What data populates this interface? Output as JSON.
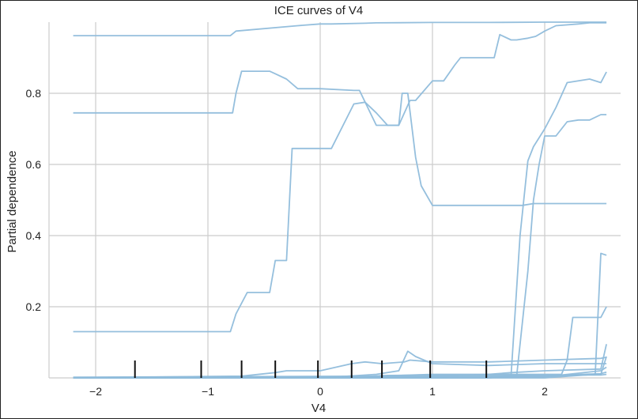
{
  "chart_data": {
    "type": "line",
    "title": "ICE curves of V4",
    "xlabel": "V4",
    "ylabel": "Partial dependence",
    "xlim": [
      -2.25,
      2.6
    ],
    "ylim": [
      0,
      1.0
    ],
    "xticks": [
      -2,
      -1,
      0,
      1,
      2
    ],
    "yticks": [
      0.2,
      0.4,
      0.6,
      0.8
    ],
    "xtick_labels": [
      "−2",
      "−1",
      "0",
      "1",
      "2"
    ],
    "ytick_labels": [
      "0.2",
      "0.4",
      "0.6",
      "0.8"
    ],
    "grid": true,
    "line_color": "#8fbcdb",
    "rug_color": "#111111",
    "rug_x": [
      -1.65,
      -1.06,
      -0.7,
      -0.4,
      -0.02,
      0.28,
      0.55,
      0.98,
      1.48
    ],
    "series": [
      {
        "x": [
          -2.2,
          -0.8,
          -0.75,
          -0.2,
          0.0,
          0.1,
          0.4,
          0.5,
          1.0,
          1.5,
          2.0,
          2.55
        ],
        "y": [
          0.962,
          0.962,
          0.975,
          0.99,
          0.995,
          0.995,
          0.997,
          0.998,
          0.999,
          0.999,
          1.0,
          1.0
        ]
      },
      {
        "x": [
          -2.2,
          -0.78,
          -0.75,
          -0.7,
          -0.45,
          -0.4,
          -0.3,
          -0.2,
          0.0,
          0.3,
          0.35,
          0.5,
          0.7,
          0.73,
          0.78,
          0.85,
          0.9,
          1.0,
          1.1,
          1.2,
          1.8,
          1.9,
          2.0,
          2.55
        ],
        "y": [
          0.745,
          0.745,
          0.8,
          0.862,
          0.862,
          0.855,
          0.84,
          0.813,
          0.813,
          0.808,
          0.808,
          0.71,
          0.71,
          0.8,
          0.8,
          0.62,
          0.54,
          0.485,
          0.485,
          0.485,
          0.485,
          0.49,
          0.49,
          0.49
        ]
      },
      {
        "x": [
          -2.2,
          -0.8,
          -0.75,
          -0.65,
          -0.45,
          -0.4,
          -0.3,
          -0.25,
          0.0,
          0.1,
          0.3,
          0.4,
          0.5,
          0.6,
          0.7,
          0.8,
          0.85,
          1.0,
          1.1,
          1.2,
          1.25,
          1.3,
          1.55,
          1.6,
          1.7,
          1.75,
          1.85,
          1.92,
          2.0,
          2.1,
          2.3,
          2.4,
          2.55
        ],
        "y": [
          0.13,
          0.13,
          0.18,
          0.24,
          0.24,
          0.33,
          0.33,
          0.645,
          0.645,
          0.645,
          0.77,
          0.775,
          0.745,
          0.71,
          0.71,
          0.78,
          0.78,
          0.835,
          0.835,
          0.88,
          0.9,
          0.9,
          0.9,
          0.965,
          0.95,
          0.95,
          0.955,
          0.96,
          0.975,
          0.99,
          0.995,
          0.998,
          0.998
        ]
      },
      {
        "x": [
          -2.2,
          0.0,
          0.3,
          0.5,
          0.7,
          1.0,
          1.5,
          1.7,
          1.78,
          1.85,
          1.9,
          2.0,
          2.1,
          2.2,
          2.4,
          2.5,
          2.55
        ],
        "y": [
          0.0,
          0.0,
          0.0,
          0.0,
          0.0,
          0.0,
          0.0,
          0.005,
          0.4,
          0.61,
          0.65,
          0.7,
          0.76,
          0.83,
          0.84,
          0.83,
          0.86
        ]
      },
      {
        "x": [
          -2.2,
          0.0,
          0.5,
          1.0,
          1.5,
          1.75,
          1.85,
          1.9,
          1.95,
          2.0,
          2.1,
          2.2,
          2.3,
          2.4,
          2.5,
          2.55
        ],
        "y": [
          0.0,
          0.0,
          0.0,
          0.0,
          0.0,
          0.005,
          0.3,
          0.5,
          0.6,
          0.68,
          0.68,
          0.72,
          0.725,
          0.725,
          0.74,
          0.74
        ]
      },
      {
        "x": [
          -2.2,
          -0.7,
          -0.4,
          -0.3,
          0.0,
          0.28,
          0.4,
          0.55,
          0.75,
          0.8,
          1.0,
          1.5,
          2.0,
          2.5,
          2.55
        ],
        "y": [
          0.0,
          0.005,
          0.015,
          0.02,
          0.02,
          0.04,
          0.045,
          0.04,
          0.045,
          0.05,
          0.045,
          0.045,
          0.05,
          0.055,
          0.058
        ]
      },
      {
        "x": [
          -2.2,
          0.0,
          0.5,
          0.7,
          0.78,
          0.85,
          1.0,
          1.5,
          2.0,
          2.5,
          2.55
        ],
        "y": [
          0.0,
          0.0,
          0.01,
          0.02,
          0.075,
          0.06,
          0.04,
          0.035,
          0.04,
          0.04,
          0.04
        ]
      },
      {
        "x": [
          -2.2,
          0.0,
          1.0,
          1.5,
          2.0,
          2.15,
          2.2,
          2.25,
          2.5,
          2.55
        ],
        "y": [
          0.0,
          0.0,
          0.005,
          0.01,
          0.01,
          0.01,
          0.05,
          0.17,
          0.17,
          0.2
        ]
      },
      {
        "x": [
          -2.2,
          0.0,
          1.0,
          2.0,
          2.45,
          2.5,
          2.55
        ],
        "y": [
          0.0,
          0.0,
          0.0,
          0.0,
          0.01,
          0.35,
          0.345
        ]
      },
      {
        "x": [
          -2.2,
          0.5,
          1.0,
          1.5,
          1.7,
          2.0,
          2.5,
          2.55
        ],
        "y": [
          0.002,
          0.005,
          0.01,
          0.01,
          0.015,
          0.02,
          0.025,
          0.095
        ]
      },
      {
        "x": [
          -2.2,
          1.0,
          2.0,
          2.5,
          2.55
        ],
        "y": [
          0.0,
          0.002,
          0.004,
          0.01,
          0.06
        ]
      },
      {
        "x": [
          -2.2,
          1.0,
          2.0,
          2.5,
          2.55
        ],
        "y": [
          0.0,
          0.0,
          0.003,
          0.02,
          0.03
        ]
      },
      {
        "x": [
          -2.2,
          0.5,
          1.0,
          2.0,
          2.5,
          2.55
        ],
        "y": [
          0.0,
          0.002,
          0.004,
          0.006,
          0.012,
          0.016
        ]
      },
      {
        "x": [
          -2.2,
          0.3,
          0.6,
          1.0,
          2.5,
          2.55
        ],
        "y": [
          0.001,
          0.003,
          0.007,
          0.008,
          0.008,
          0.01
        ]
      }
    ]
  }
}
